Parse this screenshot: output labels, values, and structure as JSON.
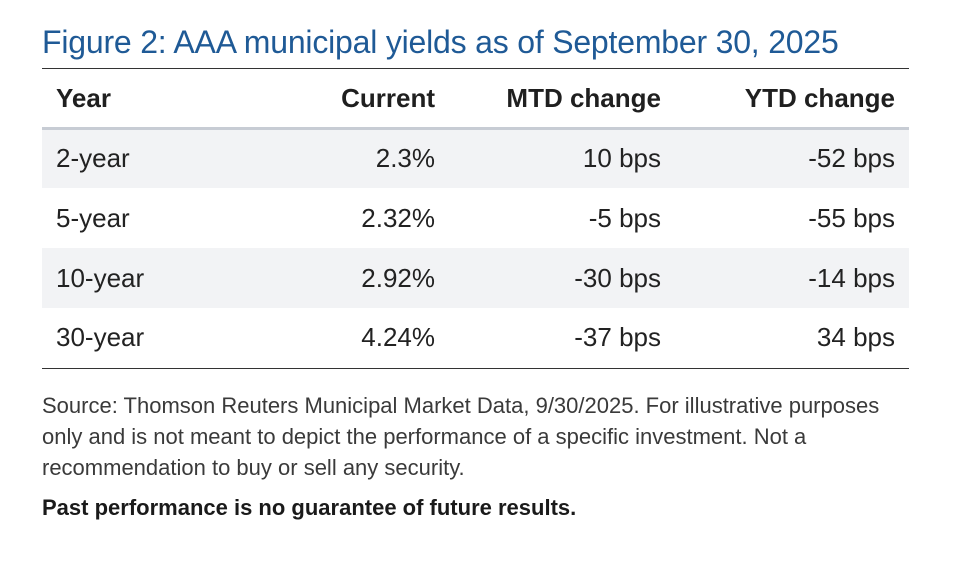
{
  "figure": {
    "title": "Figure 2: AAA municipal yields as of September 30, 2025",
    "title_color": "#1f5a96"
  },
  "table": {
    "headers": {
      "year": "Year",
      "current": "Current",
      "mtd": "MTD change",
      "ytd": "YTD change"
    },
    "rows": [
      {
        "year": "2-year",
        "current": "2.3%",
        "mtd": "10 bps",
        "ytd": "-52 bps"
      },
      {
        "year": "5-year",
        "current": "2.32%",
        "mtd": "-5 bps",
        "ytd": "-55 bps"
      },
      {
        "year": "10-year",
        "current": "2.92%",
        "mtd": "-30 bps",
        "ytd": "-14 bps"
      },
      {
        "year": "30-year",
        "current": "4.24%",
        "mtd": "-37 bps",
        "ytd": "34 bps"
      }
    ],
    "row_shade_color": "#f2f3f5"
  },
  "footnote": {
    "source": "Source: Thomson Reuters Municipal Market Data, 9/30/2025. For illustrative purposes only and is not meant to depict the performance of a specific investment. Not a recommendation to buy or sell any security.",
    "disclaimer": "Past performance is no guarantee of future results."
  }
}
